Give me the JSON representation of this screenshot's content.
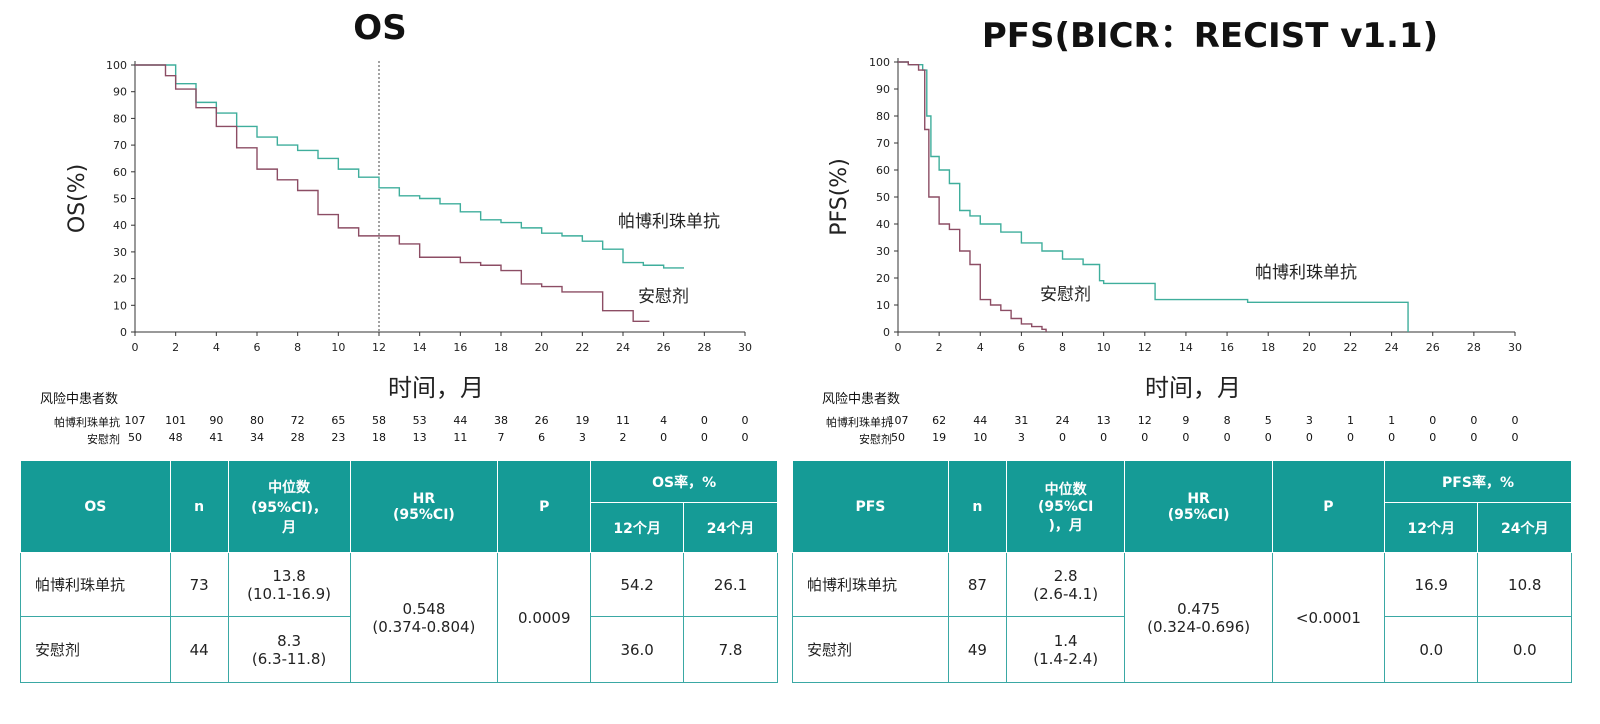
{
  "colors": {
    "treatment": "#3fae9c",
    "placebo": "#8c4d64",
    "header_bg": "#159b96",
    "highlight": "#d43a3a"
  },
  "chart_data": [
    {
      "type": "line",
      "title": "OS",
      "ylabel": "OS(%)",
      "xlabel": "时间，月",
      "xlim": [
        0,
        30
      ],
      "ylim": [
        0,
        100
      ],
      "x_ticks": [
        0,
        2,
        4,
        6,
        8,
        10,
        12,
        14,
        16,
        18,
        20,
        22,
        24,
        26,
        28,
        30
      ],
      "y_ticks": [
        0,
        10,
        20,
        30,
        40,
        50,
        60,
        70,
        80,
        90,
        100
      ],
      "reference_line_x": 12,
      "series": [
        {
          "name": "帕博利珠单抗",
          "x": [
            0,
            1.5,
            2,
            3,
            4,
            5,
            6,
            7,
            8,
            9,
            10,
            11,
            12,
            13,
            14,
            15,
            16,
            17,
            18,
            19,
            20,
            21,
            22,
            23,
            24,
            25,
            26,
            27
          ],
          "y": [
            100,
            100,
            93,
            86,
            82,
            77,
            73,
            70,
            68,
            65,
            61,
            58,
            54,
            51,
            50,
            48,
            45,
            42,
            41,
            39,
            37,
            36,
            34,
            31,
            26,
            25,
            24,
            24
          ]
        },
        {
          "name": "安慰剂",
          "x": [
            0,
            1.3,
            1.5,
            2,
            3,
            4,
            5,
            6,
            7,
            8,
            9,
            10,
            11,
            12,
            13,
            14,
            15,
            16,
            17,
            18,
            19,
            20,
            21,
            22,
            23,
            24,
            24.5,
            25,
            25.3
          ],
          "y": [
            100,
            100,
            96,
            91,
            84,
            77,
            69,
            61,
            57,
            53,
            44,
            39,
            36,
            36,
            33,
            28,
            28,
            26,
            25,
            23,
            18,
            17,
            15,
            15,
            8,
            8,
            4,
            4,
            4
          ]
        }
      ],
      "at_risk": {
        "title": "风险中患者数",
        "rows": [
          {
            "label": "帕博利珠单抗",
            "values": [
              "107",
              "101",
              "90",
              "80",
              "72",
              "65",
              "58",
              "53",
              "44",
              "38",
              "26",
              "19",
              "11",
              "4",
              "0",
              "0"
            ]
          },
          {
            "label": "安慰剂",
            "values": [
              "50",
              "48",
              "41",
              "34",
              "28",
              "23",
              "18",
              "13",
              "11",
              "7",
              "6",
              "3",
              "2",
              "0",
              "0",
              "0"
            ]
          }
        ]
      }
    },
    {
      "type": "line",
      "title": "PFS(BICR：RECIST v1.1)",
      "ylabel": "PFS(%)",
      "xlabel": "时间，月",
      "xlim": [
        0,
        30
      ],
      "ylim": [
        0,
        100
      ],
      "x_ticks": [
        0,
        2,
        4,
        6,
        8,
        10,
        12,
        14,
        16,
        18,
        20,
        22,
        24,
        26,
        28,
        30
      ],
      "y_ticks": [
        0,
        10,
        20,
        30,
        40,
        50,
        60,
        70,
        80,
        90,
        100
      ],
      "series": [
        {
          "name": "帕博利珠单抗",
          "x": [
            0,
            0.5,
            1.2,
            1.4,
            1.6,
            2,
            2.5,
            3,
            3.5,
            4,
            5,
            6,
            7,
            8,
            9,
            9.8,
            10,
            11,
            12,
            12.5,
            14,
            16,
            17,
            18,
            20,
            22,
            24,
            24.8,
            24.8
          ],
          "y": [
            100,
            99,
            97,
            80,
            65,
            60,
            55,
            45,
            43,
            40,
            37,
            33,
            30,
            27,
            25,
            19,
            18,
            18,
            18,
            12,
            12,
            12,
            11,
            11,
            11,
            11,
            11,
            11,
            0
          ]
        },
        {
          "name": "安慰剂",
          "x": [
            0,
            0.5,
            1,
            1.3,
            1.5,
            2,
            2.5,
            3,
            3.5,
            4,
            4.5,
            5,
            5.5,
            6,
            6.5,
            7,
            7.2
          ],
          "y": [
            100,
            99,
            97,
            75,
            50,
            40,
            38,
            30,
            25,
            12,
            10,
            8,
            5,
            3,
            2,
            1,
            0
          ]
        }
      ],
      "at_risk": {
        "title": "风险中患者数",
        "rows": [
          {
            "label": "帕博利珠单抗",
            "values": [
              "107",
              "62",
              "44",
              "31",
              "24",
              "13",
              "12",
              "9",
              "8",
              "5",
              "3",
              "1",
              "1",
              "0",
              "0",
              "0"
            ]
          },
          {
            "label": "安慰剂",
            "values": [
              "50",
              "19",
              "10",
              "3",
              "0",
              "0",
              "0",
              "0",
              "0",
              "0",
              "0",
              "0",
              "0",
              "0",
              "0",
              "0"
            ]
          }
        ]
      }
    }
  ],
  "os_table": {
    "header": {
      "endpoint": "OS",
      "n": "n",
      "median": "中位数\n(95%CI)，\n月",
      "hr": "HR\n(95%CI)",
      "p": "P",
      "rate": "OS率，%",
      "m12": "12个月",
      "m24": "24个月"
    },
    "rows": [
      {
        "group": "帕博利珠单抗",
        "n": "73",
        "median": "13.8\n(10.1-16.9)",
        "m12": "54.2",
        "m24": "26.1"
      },
      {
        "group": "安慰剂",
        "n": "44",
        "median": "8.3\n(6.3-11.8)",
        "m12": "36.0",
        "m24": "7.8"
      }
    ],
    "hr_value": "0.548\n(0.374-0.804)",
    "p_value": "0.0009"
  },
  "pfs_table": {
    "header": {
      "endpoint": "PFS",
      "n": "n",
      "median": "中位数\n(95%CI\n)，月",
      "hr": "HR\n(95%CI)",
      "p": "P",
      "rate": "PFS率，%",
      "m12": "12个月",
      "m24": "24个月"
    },
    "rows": [
      {
        "group": "帕博利珠单抗",
        "n": "87",
        "median": "2.8\n(2.6-4.1)",
        "m12": "16.9",
        "m24": "10.8"
      },
      {
        "group": "安慰剂",
        "n": "49",
        "median": "1.4\n(1.4-2.4)",
        "m12": "0.0",
        "m24": "0.0"
      }
    ],
    "hr_value": "0.475\n(0.324-0.696)",
    "p_value": "<0.0001"
  }
}
